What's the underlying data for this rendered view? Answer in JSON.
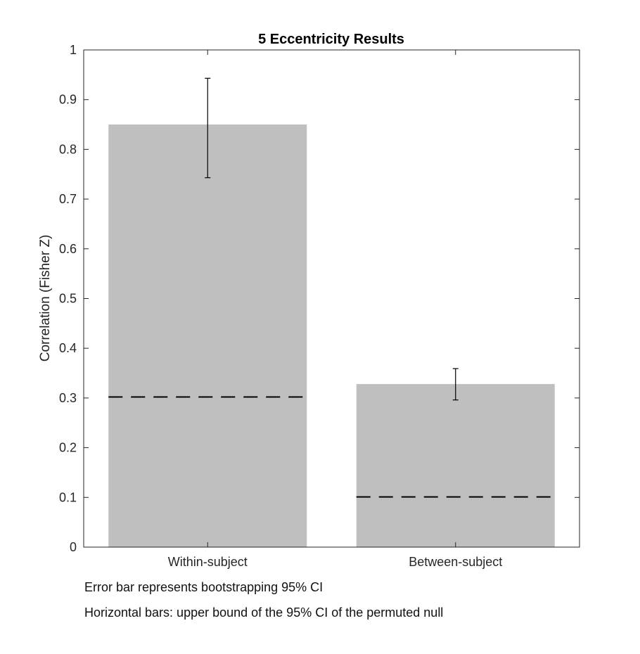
{
  "chart_data": {
    "type": "bar",
    "title": "5 Eccentricity Results",
    "xlabel": "",
    "ylabel": "Correlation (Fisher Z)",
    "ylim": [
      0,
      1
    ],
    "yticks": [
      0,
      0.1,
      0.2,
      0.3,
      0.4,
      0.5,
      0.6,
      0.7,
      0.8,
      0.9,
      1
    ],
    "ytick_labels": [
      "0",
      "0.1",
      "0.2",
      "0.3",
      "0.4",
      "0.5",
      "0.6",
      "0.7",
      "0.8",
      "0.9",
      "1"
    ],
    "categories": [
      "Within-subject",
      "Between-subject"
    ],
    "values": [
      0.85,
      0.328
    ],
    "error_bars": [
      {
        "low": 0.743,
        "high": 0.943
      },
      {
        "low": 0.296,
        "high": 0.359
      }
    ],
    "null_upper_bounds": [
      0.302,
      0.101
    ],
    "bar_color": "#bfbfbf",
    "grid": false
  },
  "notes": {
    "error_bar": "Error bar represents bootstrapping 95% CI",
    "horizontal_bars": "Horizontal bars: upper bound of the 95% CI of the permuted null"
  }
}
